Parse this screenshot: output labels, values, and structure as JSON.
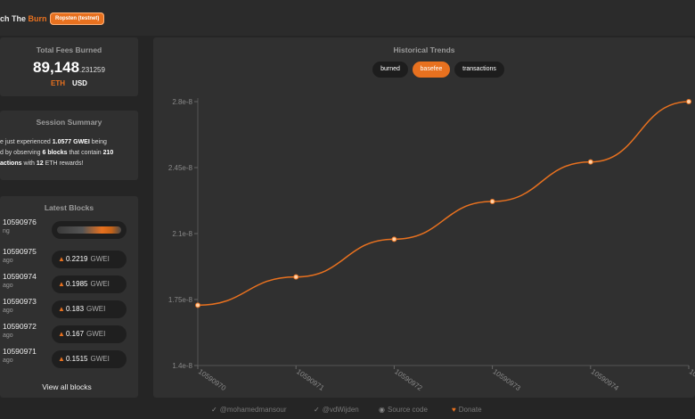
{
  "header": {
    "title_prefix": "ch The ",
    "title_accent": "Burn",
    "network_badge": "Ropsten (testnet)"
  },
  "fees": {
    "title": "Total Fees Burned",
    "value_int": "89,148",
    "value_dec": ".231259",
    "units": [
      "ETH",
      "USD"
    ]
  },
  "summary": {
    "title": "Session Summary",
    "line1_pre": "e just experienced ",
    "line1_val": "1.0577",
    "line1_unit": " GWEI",
    "line1_post": " being",
    "line2_pre": "d by observing ",
    "line2_val": "6 blocks",
    "line2_mid": " that contain ",
    "line2_count": "210",
    "line3_pre": "actions",
    "line3_mid": " with ",
    "line3_val": "12",
    "line3_post": "  ETH rewards!"
  },
  "latest_blocks": {
    "title": "Latest Blocks",
    "view_all": "View all blocks",
    "rows": [
      {
        "number": "10590976",
        "age": "ng",
        "gwei": null
      },
      {
        "number": "10590975",
        "age": "ago",
        "gwei": "0.2219"
      },
      {
        "number": "10590974",
        "age": "ago",
        "gwei": "0.1985"
      },
      {
        "number": "10590973",
        "age": "ago",
        "gwei": "0.183"
      },
      {
        "number": "10590972",
        "age": "ago",
        "gwei": "0.167"
      },
      {
        "number": "10590971",
        "age": "ago",
        "gwei": "0.1515"
      }
    ],
    "gwei_unit": "GWEI"
  },
  "chart_panel": {
    "title": "Historical Trends",
    "toggles": [
      {
        "label": "burned",
        "active": false
      },
      {
        "label": "basefee",
        "active": true
      },
      {
        "label": "transactions",
        "active": false
      }
    ]
  },
  "chart_data": {
    "type": "line",
    "title": "",
    "xlabel": "",
    "ylabel": "",
    "x": [
      "10590970",
      "10590971",
      "10590972",
      "10590973",
      "10590974",
      "10590975"
    ],
    "series": [
      {
        "values": [
          1.72e-08,
          1.87e-08,
          2.07e-08,
          2.27e-08,
          2.48e-08,
          2.8e-08
        ]
      }
    ],
    "yticks": [
      "1.4e-8",
      "1.75e-8",
      "2.1e-8",
      "2.45e-8",
      "2.8e-8"
    ],
    "ytick_values": [
      1.4e-08,
      1.75e-08,
      2.1e-08,
      2.45e-08,
      2.8e-08
    ],
    "ylim": [
      1.4e-08,
      2.8e-08
    ],
    "line_color": "#e8711f",
    "grid": false
  },
  "footer": {
    "items": [
      "@mohamedmansour",
      "@vdWijden",
      "Source code",
      "Donate"
    ]
  },
  "colors": {
    "accent": "#e8711f",
    "background": "#252525",
    "panel": "#303030"
  }
}
